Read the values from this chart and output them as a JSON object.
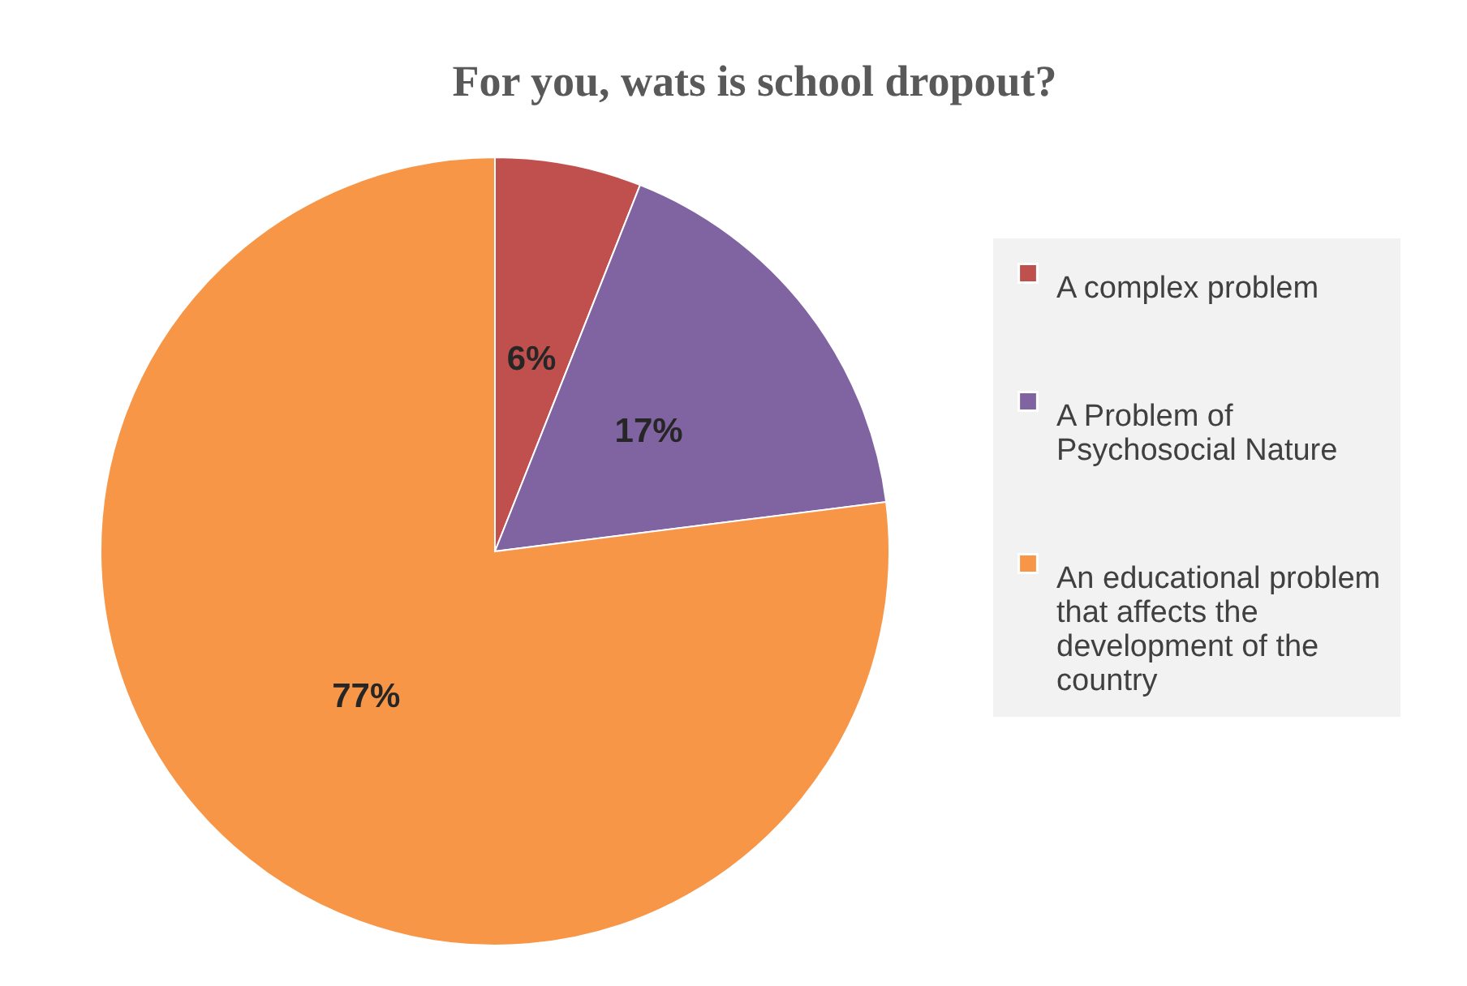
{
  "chart_data": {
    "type": "pie",
    "title": "For you, wats is school dropout?",
    "categories": [
      "A complex problem",
      "A Problem of Psychosocial Nature",
      "An educational problem that affects the development of the country"
    ],
    "values": [
      6,
      17,
      77
    ],
    "colors": [
      "#c0504d",
      "#8064a2",
      "#f79646"
    ],
    "value_labels": [
      "6%",
      "17%",
      "77%"
    ],
    "legend": "right"
  }
}
